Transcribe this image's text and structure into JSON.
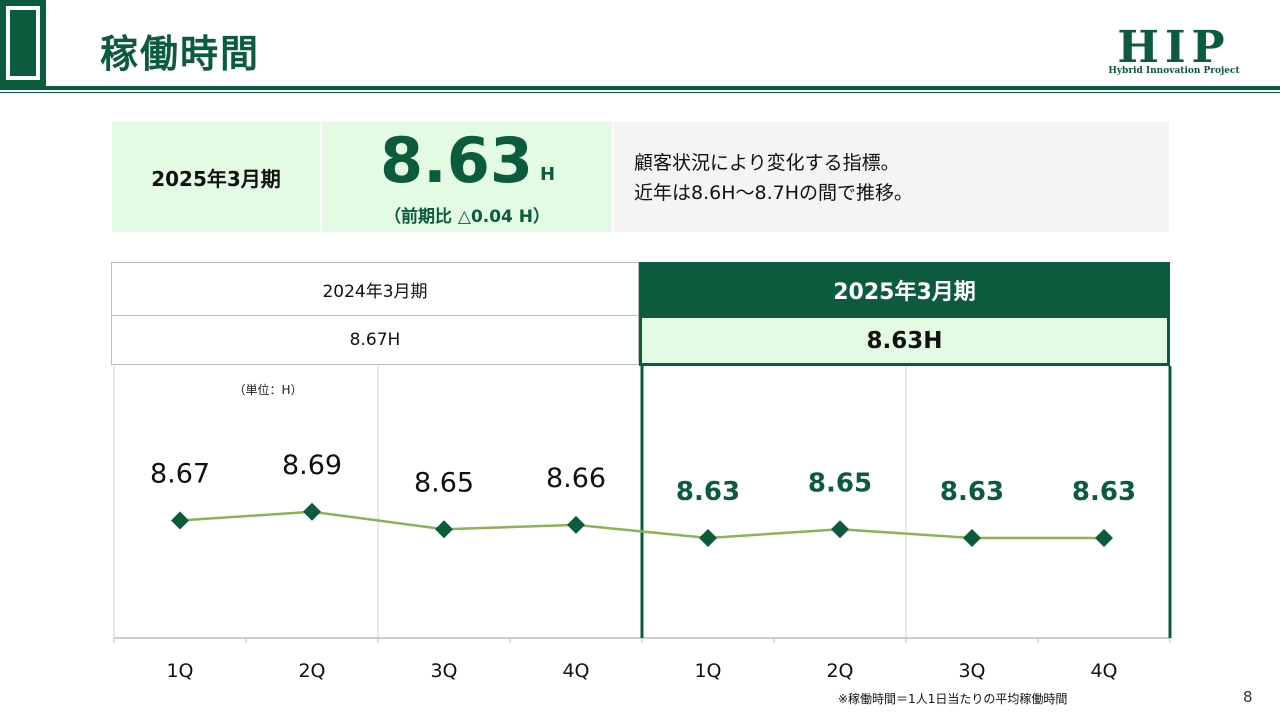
{
  "header": {
    "title": "稼働時間",
    "logo": {
      "name": "HIP",
      "tagline": "Hybrid Innovation Project"
    }
  },
  "summary": {
    "period": "2025年3月期",
    "value": "8.63",
    "unit": "H",
    "change": "（前期比 △0.04 H）",
    "description_line1": "顧客状況により変化する指標。",
    "description_line2": "近年は8.6H～8.7Hの間で推移。"
  },
  "period_table": {
    "previous": {
      "label": "2024年3月期",
      "value": "8.67H"
    },
    "current": {
      "label": "2025年3月期",
      "value": "8.63H"
    }
  },
  "chart_data": {
    "type": "line",
    "unit_label": "（単位：H）",
    "categories": [
      "1Q",
      "2Q",
      "3Q",
      "4Q",
      "1Q",
      "2Q",
      "3Q",
      "4Q"
    ],
    "values": [
      8.67,
      8.69,
      8.65,
      8.66,
      8.63,
      8.65,
      8.63,
      8.63
    ],
    "labels": [
      "8.67",
      "8.69",
      "8.65",
      "8.66",
      "8.63",
      "8.65",
      "8.63",
      "8.63"
    ],
    "groups": [
      {
        "label": "2024年3月期",
        "indices": [
          0,
          1,
          2,
          3
        ]
      },
      {
        "label": "2025年3月期",
        "indices": [
          4,
          5,
          6,
          7
        ]
      }
    ],
    "colors": {
      "line": "#8db356",
      "marker": "#0b5b3c",
      "label_prev": "#111111",
      "label_current": "#0b5b3c"
    },
    "grid": false,
    "legend": "none"
  },
  "footnote": "※稼働時間＝1人1日当たりの平均稼働時間",
  "page_number": "8"
}
